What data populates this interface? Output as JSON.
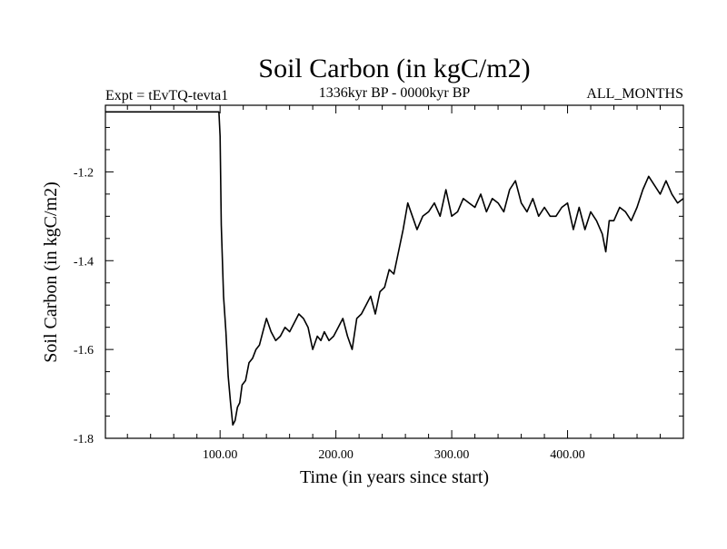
{
  "chart_data": {
    "type": "line",
    "title": "Soil Carbon (in kgC/m2)",
    "subtitle_left": "Expt = tEvTQ-tevta1",
    "subtitle_center": "1336kyr BP - 0000kyr BP",
    "subtitle_right": "ALL_MONTHS",
    "xlabel": "Time (in years since start)",
    "ylabel": "Soil Carbon (in kgC/m2)",
    "xlim": [
      1,
      500
    ],
    "ylim": [
      -1.8,
      -1.05
    ],
    "xticks": [
      100,
      200,
      300,
      400
    ],
    "xtick_labels": [
      "100.00",
      "200.00",
      "300.00",
      "400.00"
    ],
    "yticks": [
      -1.8,
      -1.6,
      -1.4,
      -1.2
    ],
    "ytick_labels": [
      "-1.8",
      "-1.6",
      "-1.4",
      "-1.2"
    ],
    "grid": false,
    "series": [
      {
        "name": "Soil Carbon",
        "color": "#000000",
        "x": [
          1,
          99,
          100,
          101,
          103,
          105,
          107,
          109,
          111,
          113,
          115,
          117,
          119,
          122,
          125,
          128,
          131,
          134,
          137,
          140,
          144,
          148,
          152,
          156,
          160,
          164,
          168,
          172,
          176,
          180,
          184,
          187,
          190,
          194,
          198,
          202,
          206,
          210,
          214,
          218,
          222,
          226,
          230,
          234,
          238,
          242,
          246,
          250,
          254,
          258,
          262,
          266,
          270,
          275,
          280,
          285,
          290,
          295,
          300,
          305,
          310,
          315,
          320,
          325,
          330,
          335,
          340,
          345,
          350,
          355,
          360,
          365,
          370,
          375,
          380,
          385,
          390,
          395,
          400,
          405,
          410,
          415,
          420,
          425,
          430,
          433,
          436,
          440,
          445,
          450,
          455,
          460,
          465,
          470,
          475,
          480,
          485,
          490,
          495,
          500
        ],
        "y": [
          -1.065,
          -1.065,
          -1.12,
          -1.32,
          -1.48,
          -1.56,
          -1.66,
          -1.72,
          -1.77,
          -1.76,
          -1.73,
          -1.72,
          -1.68,
          -1.67,
          -1.63,
          -1.62,
          -1.6,
          -1.59,
          -1.56,
          -1.53,
          -1.56,
          -1.58,
          -1.57,
          -1.55,
          -1.56,
          -1.54,
          -1.52,
          -1.53,
          -1.55,
          -1.6,
          -1.57,
          -1.58,
          -1.56,
          -1.58,
          -1.57,
          -1.55,
          -1.53,
          -1.57,
          -1.6,
          -1.53,
          -1.52,
          -1.5,
          -1.48,
          -1.52,
          -1.47,
          -1.46,
          -1.42,
          -1.43,
          -1.38,
          -1.33,
          -1.27,
          -1.3,
          -1.33,
          -1.3,
          -1.29,
          -1.27,
          -1.3,
          -1.24,
          -1.3,
          -1.29,
          -1.26,
          -1.27,
          -1.28,
          -1.25,
          -1.29,
          -1.26,
          -1.27,
          -1.29,
          -1.24,
          -1.22,
          -1.27,
          -1.29,
          -1.26,
          -1.3,
          -1.28,
          -1.3,
          -1.3,
          -1.28,
          -1.27,
          -1.33,
          -1.28,
          -1.33,
          -1.29,
          -1.31,
          -1.34,
          -1.38,
          -1.31,
          -1.31,
          -1.28,
          -1.29,
          -1.31,
          -1.28,
          -1.24,
          -1.21,
          -1.23,
          -1.25,
          -1.22,
          -1.25,
          -1.27,
          -1.26
        ]
      }
    ]
  }
}
